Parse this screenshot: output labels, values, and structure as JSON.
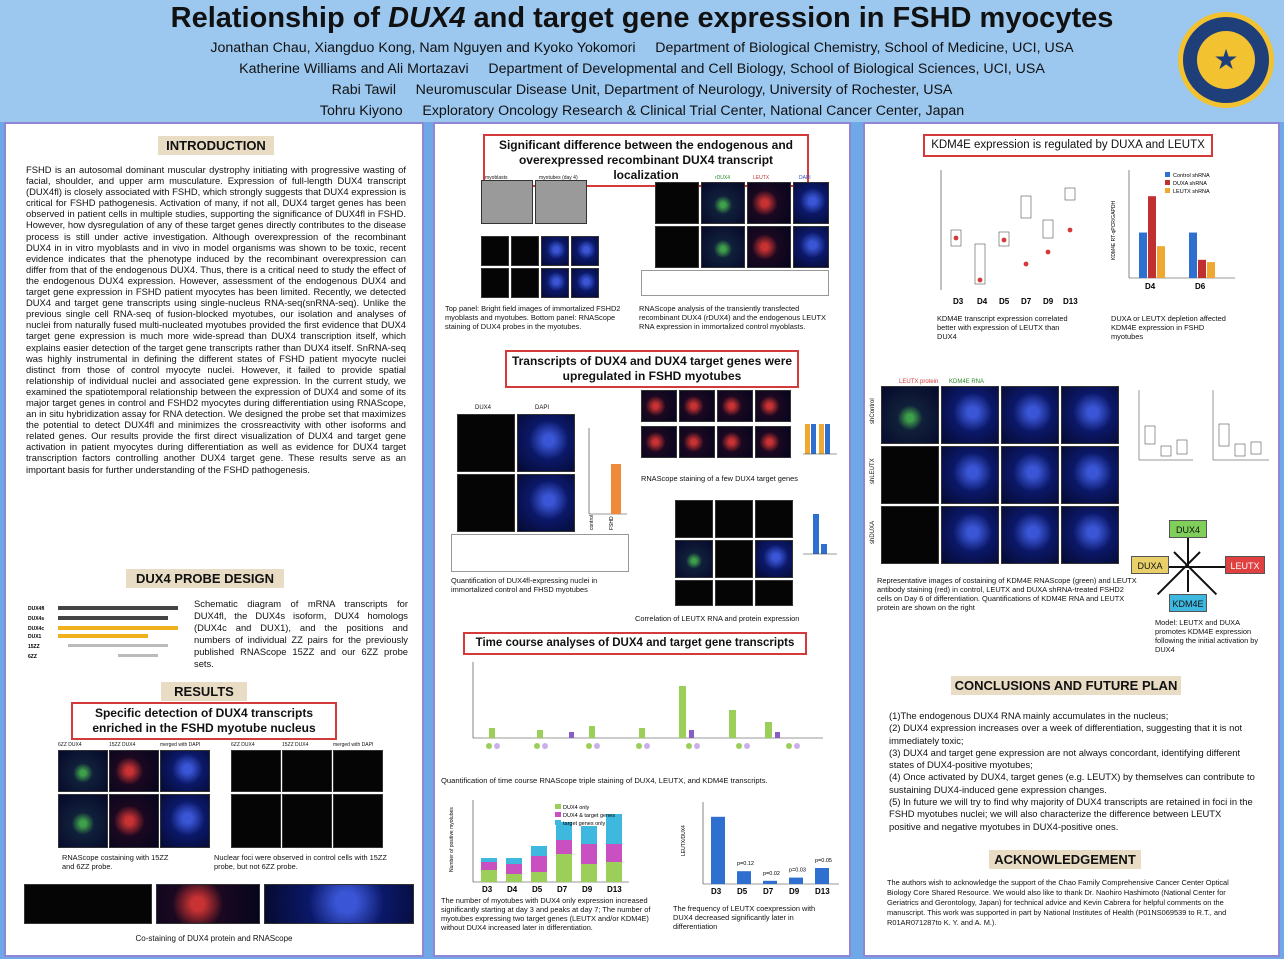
{
  "header": {
    "title_pre": "Relationship of ",
    "title_italic": "DUX4",
    "title_post": " and target gene expression in FSHD myocytes",
    "author_lines": [
      "Jonathan Chau, Xiangduo Kong, Nam Nguyen and Kyoko Yokomori     Department of Biological Chemistry, School of Medicine, UCI, USA",
      "Katherine Williams and Ali Mortazavi     Department of Developmental and Cell Biology, School of Biological Sciences, UCI, USA",
      "Rabi Tawil     Neuromuscular Disease Unit, Department of Neurology, University of Rochester, USA",
      "Tohru Kiyono     Exploratory Oncology Research & Clinical Trial Center, National Cancer Center, Japan"
    ]
  },
  "intro": {
    "heading": "INTRODUCTION",
    "text": "FSHD is an autosomal dominant muscular dystrophy initiating with progressive wasting of facial, shoulder, and upper arm musculature. Expression of full-length DUX4 transcript (DUX4fl) is closely associated with FSHD, which strongly suggests that DUX4 expression is critical for FSHD pathogenesis. Activation of many, if not all, DUX4 target genes has been observed in patient cells in multiple studies, supporting the significance of DUX4fl in FSHD. However, how dysregulation of any of these target genes directly contributes to the disease process is still under active investigation. Although overexpression of the recombinant DUX4 in in vitro myoblasts and in vivo in model organisms was shown to be toxic, recent evidence indicates that the phenotype induced by the recombinant overexpression can differ from that of the endogenous DUX4. Thus, there is a critical need to study the effect of the endogenous DUX4 expression. However, assessment of the endogenous DUX4 and target gene expression in FSHD patient myocytes has been limited. Recently, we detected DUX4 and target gene transcripts using single-nucleus RNA-seq(snRNA-seq). Unlike the previous single cell RNA-seq of fusion-blocked myotubes, our isolation and analyses of nuclei from naturally fused multi-nucleated myotubes provided the first evidence that DUX4 target gene expression is much more wide-spread than DUX4 transcription itself, which explains easier detection of the target gene transcripts rather than DUX4 itself. SnRNA-seq was highly instrumental in defining the different states of FSHD patient myocyte nuclei distinct from those of control myocyte nuclei. However, it failed to provide spatial relationship of individual nuclei and associated gene expression. In the current study, we examined the spatiotemporal relationship between the expression of DUX4 and some of its major target genes in control and FSHD2 myocytes during differentiation using RNAScope, an in situ hybridization assay for RNA detection. We designed the probe set that maximizes the potential to detect DUX4fl and minimizes the crossreactivity with other isoforms and related genes. Our results provide the first direct visualization of DUX4 and target gene activation in patient myocytes during differentiation as well as evidence for DUX4 target transcription factors controlling another DUX4 target gene. These results serve as an important basis for further understanding of the FSHD pathogenesis."
  },
  "probe": {
    "heading": "DUX4 PROBE DESIGN",
    "text": "Schematic diagram of mRNA transcripts for DUX4fl, the DUX4s isoform, DUX4 homologs (DUX4c and DUX1), and the positions and numbers of individual ZZ pairs for the previously published RNAScope 15ZZ and our 6ZZ probe sets.",
    "rows": [
      "DUX4fl",
      "DUX4s",
      "DUX4c",
      "DUX1",
      "15ZZ",
      "6ZZ"
    ]
  },
  "results": {
    "heading": "RESULTS",
    "specific_title": "Specific detection of DUX4 transcripts enriched in the FSHD myotube nucleus",
    "cap_left": "RNAScope costaining with 15ZZ and 6ZZ probe.",
    "cap_right": "Nuclear foci were observed in control cells with 15ZZ probe, but not 6ZZ probe.",
    "cap_bottom": "Co-staining of DUX4 protein and RNAScope",
    "col_labels": [
      "6ZZ DUX4",
      "15ZZ DUX4",
      "merged with DAPI"
    ]
  },
  "col2": {
    "sig_title": "Significant difference between the endogenous and overexpressed recombinant DUX4 transcript localization",
    "img_labels_top": [
      "myoblasts",
      "myotubes (day 4)"
    ],
    "img_labels_row": [
      "15ZZ",
      "6ZZ",
      "DAPI",
      "merged"
    ],
    "img_labels_right": [
      "rDUX4",
      "LEUTX",
      "DAPI"
    ],
    "cap_top_left": "Top panel: Bright field images of immortalized FSHD2 myoblasts and myotubes. Bottom panel: RNAScope staining of DUX4 probes in the myotubes.",
    "cap_top_right": "RNAScope analysis of the transiently transfected recombinant DUX4 (rDUX4) and the endogenous LEUTX RNA expression in immortalized control myoblasts.",
    "trans_title": "Transcripts of DUX4 and DUX4 target genes were upregulated in FSHD myotubes",
    "cap_quant": "Quantification of DUX4fl-expressing nuclei in immortalized control and FHSD myotubes",
    "cap_rnascope": "RNAScope staining of a few DUX4 target genes",
    "cap_corr": "Correlation of LEUTX RNA and protein expression",
    "panel_labels": [
      "DUX4",
      "DAPI",
      "control",
      "FSHD"
    ],
    "time_title": "Time course analyses of DUX4 and target gene transcripts",
    "cap_time": "Quantification of time course RNAScope triple staining of DUX4, LEUTX, and KDM4E transcripts.",
    "cap_stack": "The number of myotubes with DUX4 only expression increased significantly starting at day 3 and peaks at day 7; The number of myotubes expressing two target genes (LEUTX and/or KDM4E) without DUX4 increased later in differentiation.",
    "cap_freq": "The frequency of LEUTX coexpression with DUX4 decreased significantly later in differentiation"
  },
  "col3": {
    "kdm_title": "KDM4E expression is regulated by DUXA and LEUTX",
    "cap_phi": "KDM4E transcript expression correlated better with expression of LEUTX than DUX4",
    "cap_sh": "DUXA or LEUTX depletion affected KDM4E expression in FSHD myotubes",
    "img_labels": [
      "LEUTX protein",
      "KDM4E RNA"
    ],
    "row_labels": [
      "shControl",
      "shLEUTX",
      "shDUXA"
    ],
    "cap_rep": "Representative images of costaining of KDM4E RNAScope (green) and LEUTX antibody staining (red) in control, LEUTX and DUXA shRNA-treated FSHD2 cells on Day 6 of differentiation. Quantifications of KDM4E RNA and LEUTX protein are shown on the right",
    "model_nodes": [
      "DUX4",
      "DUXA",
      "LEUTX",
      "KDM4E"
    ],
    "cap_model": "Model: LEUTX and DUXA promotes KDM4E expression following the initial activation by DUX4",
    "concl_heading": "CONCLUSIONS AND FUTURE PLAN",
    "conclusions": [
      "(1)The endogenous DUX4 RNA mainly accumulates in the nucleus;",
      "(2) DUX4 expression increases over a week of differentiation, suggesting that it is not immediately toxic;",
      "(3) DUX4 and target gene expression are not always concordant, identifying different states of DUX4-positive myotubes;",
      "(4) Once activated by DUX4, target genes (e.g. LEUTX) by themselves can contribute to sustaining DUX4-induced gene expression changes.",
      "(5) In future we will try to find why majority of DUX4 transcripts are retained in foci in the FSHD myotubes nuclei; we will also characterize the difference between LEUTX positive and negative myotubes in DUX4-positive ones."
    ],
    "ack_heading": "ACKNOWLEDGEMENT",
    "ack": "The authors wish to acknowledge the support of the Chao Family Comprehensive Cancer Center Optical Biology Core Shared Resource. We would also like to thank Dr. Naohiro Hashimoto (National Center for Geriatrics and Gerontology, Japan) for technical advice and Kevin Cabrera for helpful comments on the manuscript. This work was supported in part by National Institutes of Health (P01NS069539 to R.T., and R01AR071287to K. Y. and A. M.)."
  },
  "chart_data": [
    {
      "type": "bar",
      "title": "",
      "categories": [
        "D3",
        "D4",
        "D5",
        "D7",
        "D9",
        "D13"
      ],
      "series": [
        {
          "name": "DUX4 only",
          "values": [
            6,
            4,
            5,
            14,
            9,
            10
          ],
          "color": "#9bcf5a"
        },
        {
          "name": "DUX4 & target genes",
          "values": [
            4,
            5,
            8,
            7,
            10,
            9
          ],
          "color": "#c850c0"
        },
        {
          "name": "target genes only",
          "values": [
            2,
            3,
            5,
            9,
            9,
            15
          ],
          "color": "#3fb8e0"
        }
      ],
      "ylabel": "Number of positive myotubes",
      "stacked": true
    },
    {
      "type": "bar",
      "title": "",
      "categories": [
        "D3",
        "D5",
        "D7",
        "D9",
        "D13"
      ],
      "values": [
        42,
        8,
        2,
        4,
        10
      ],
      "annotations": [
        "",
        "p=0.12",
        "p=0.02",
        "p=0.03",
        "p=0.05"
      ],
      "ylabel": "LEUTX/DUX4"
    },
    {
      "type": "bar",
      "title": "",
      "categories": [
        "D4",
        "D6"
      ],
      "series": [
        {
          "name": "Control shRNA",
          "values": [
            1.0,
            1.0
          ],
          "color": "#2f6fcf"
        },
        {
          "name": "DUXA shRNA",
          "values": [
            1.8,
            0.4
          ],
          "color": "#c03030"
        },
        {
          "name": "LEUTX shRNA",
          "values": [
            0.7,
            0.35
          ],
          "color": "#f0a830"
        }
      ],
      "ylabel": "KDM4E RT-qPCR/GAPDH"
    }
  ],
  "colors": {
    "accent_red": "#d43a3a",
    "panel_border": "#8f86d6",
    "section_fill": "#e8dcc4",
    "header_bg": "#9cc8f0"
  }
}
